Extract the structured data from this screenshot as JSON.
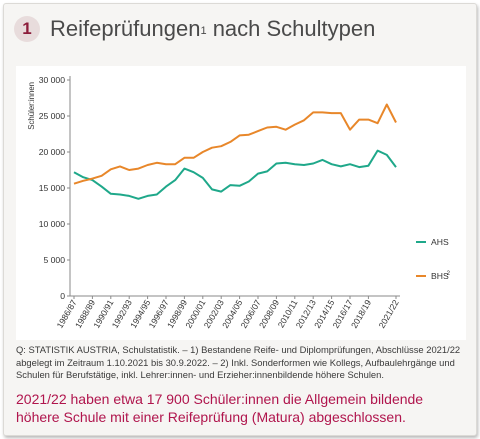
{
  "header": {
    "number": "1",
    "title": "Reifeprüfungen",
    "title_sup": "1",
    "title_rest": " nach Schultypen"
  },
  "chart_data": {
    "type": "line",
    "ylabel": "Schüler:innen",
    "ylim": [
      0,
      30000
    ],
    "yticks": [
      0,
      5000,
      10000,
      15000,
      20000,
      25000,
      30000
    ],
    "ytick_labels": [
      "0",
      "5 000",
      "10 000",
      "15 000",
      "20 000",
      "25 000",
      "30 000"
    ],
    "x": [
      "1986/87",
      "1987/88",
      "1988/89",
      "1989/90",
      "1990/91",
      "1991/92",
      "1992/93",
      "1993/94",
      "1994/95",
      "1995/96",
      "1996/97",
      "1997/98",
      "1998/99",
      "1999/00",
      "2000/01",
      "2001/02",
      "2002/03",
      "2003/04",
      "2004/05",
      "2005/06",
      "2006/07",
      "2007/08",
      "2008/09",
      "2009/10",
      "2010/11",
      "2011/12",
      "2012/13",
      "2013/14",
      "2014/15",
      "2015/16",
      "2016/17",
      "2017/18",
      "2018/19",
      "2019/20",
      "2020/21",
      "2021/22"
    ],
    "xtick_labels": [
      "1986/87",
      "1988/89",
      "1990/91",
      "1992/93",
      "1994/95",
      "1996/97",
      "1998/99",
      "2000/01",
      "2002/03",
      "2004/05",
      "2006/07",
      "2008/09",
      "2010/11",
      "2012/13",
      "2014/15",
      "2016/17",
      "2018/19",
      "2021/22"
    ],
    "grid": false,
    "legend_position": "right",
    "series": [
      {
        "name": "AHS",
        "color": "#1fa88a",
        "values": [
          17200,
          16500,
          16100,
          15200,
          14200,
          14100,
          13900,
          13500,
          13900,
          14100,
          15200,
          16100,
          17700,
          17200,
          16400,
          14800,
          14500,
          15400,
          15300,
          15900,
          17000,
          17300,
          18400,
          18500,
          18300,
          18200,
          18400,
          18900,
          18300,
          18000,
          18300,
          17900,
          18100,
          20200,
          19600,
          17900
        ]
      },
      {
        "name": "BHS",
        "sup": "2",
        "color": "#e8872a",
        "values": [
          15600,
          16000,
          16300,
          16700,
          17600,
          18000,
          17500,
          17700,
          18200,
          18500,
          18300,
          18300,
          19200,
          19200,
          20000,
          20600,
          20800,
          21400,
          22300,
          22400,
          22900,
          23400,
          23500,
          23100,
          23800,
          24400,
          25500,
          25500,
          25400,
          25400,
          23100,
          24500,
          24500,
          24000,
          26600,
          24100
        ]
      }
    ]
  },
  "source_note": "Q: STATISTIK AUSTRIA, Schulstatistik. – 1) Bestandene Reife- und Diplomprüfungen, Abschlüsse 2021/22 abgelegt im Zeitraum 1.10.2021 bis 30.9.2022. – 2) Inkl. Sonderformen wie Kollegs, Aufbaulehrgänge und Schulen für Berufstätige, inkl. Lehrer:innen- und Erzieher:innenbildende höhere Schulen.",
  "conclusion": "2021/22 haben etwa 17 900 Schüler:innen die Allgemein bildende höhere Schule mit einer Reifeprüfung (Matura) abgeschlossen."
}
